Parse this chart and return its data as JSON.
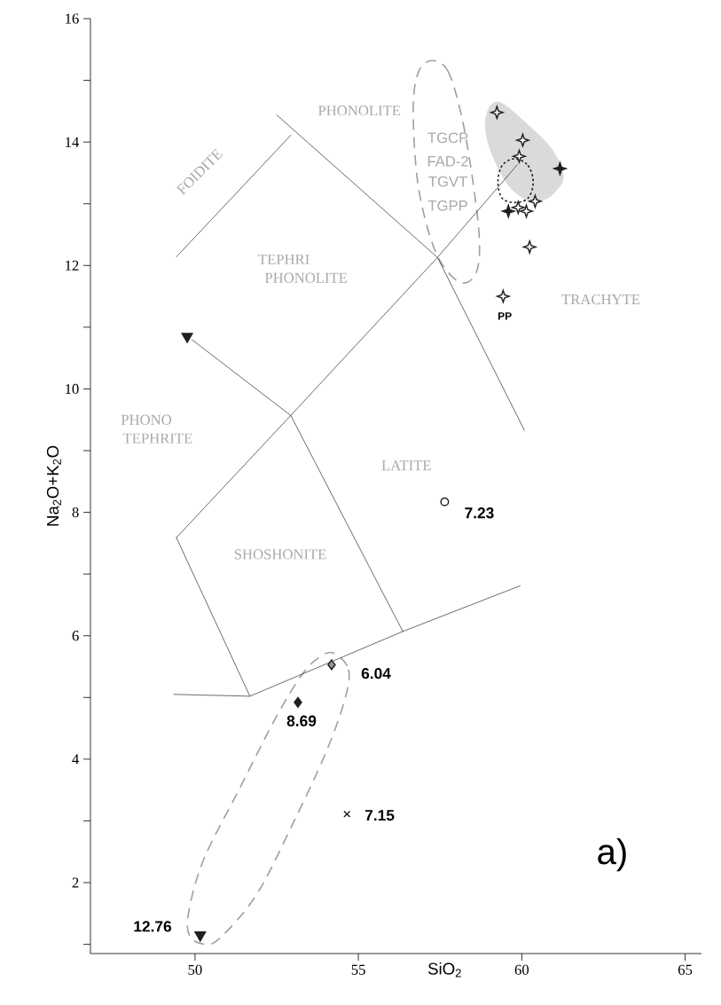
{
  "chart_data": {
    "type": "scatter",
    "xlabel": "SiO$_{2}$",
    "ylabel": "Na$_{2}$O+K$_{2}$O",
    "xlim": [
      46.8,
      65.5
    ],
    "ylim": [
      0.85,
      16
    ],
    "xticks": [
      50,
      55,
      60,
      65
    ],
    "yticks": [
      {
        "value": 1,
        "label": null
      },
      2,
      {
        "value": 3,
        "label": null
      },
      4,
      {
        "value": 5,
        "label": null
      },
      6,
      {
        "value": 7,
        "label": null
      },
      8,
      {
        "value": 9,
        "label": null
      },
      10,
      {
        "value": 11,
        "label": null
      },
      12,
      {
        "value": 13,
        "label": null
      },
      14,
      {
        "value": 15,
        "label": null
      },
      16
    ],
    "series": [
      {
        "type": "line",
        "color": "#231f20",
        "line_style": "solid",
        "x": [
          49.43,
          52.93
        ],
        "values": [
          12.14,
          14.11
        ]
      },
      {
        "type": "line",
        "color": "#231f20",
        "line_style": "solid",
        "x": [
          52.5,
          57.42,
          60.08
        ],
        "values": [
          14.44,
          12.13,
          9.33
        ]
      },
      {
        "type": "line",
        "color": "#231f20",
        "line_style": "solid",
        "x": [
          49.43,
          52.93,
          57.42,
          59.86
        ],
        "values": [
          7.59,
          9.57,
          12.13,
          13.63
        ]
      },
      {
        "type": "line",
        "color": "#231f20",
        "line_style": "solid",
        "x": [
          52.93,
          56.36
        ],
        "values": [
          9.57,
          6.07
        ]
      },
      {
        "type": "line",
        "color": "#231f20",
        "line_style": "solid",
        "x": [
          49.43,
          51.68,
          49.35
        ],
        "values": [
          7.59,
          5.02,
          5.05
        ]
      },
      {
        "type": "line",
        "color": "#231f20",
        "line_style": "solid",
        "x": [
          51.68,
          56.36,
          59.95
        ],
        "values": [
          5.02,
          6.07,
          6.81
        ]
      },
      {
        "marker": "star",
        "color": "#ffffff",
        "x": [
          59.24,
          60.03,
          59.92
        ],
        "values": [
          14.48,
          14.03,
          13.77
        ]
      },
      {
        "marker": "star",
        "color": "#231f20",
        "x": [
          61.17,
          59.59
        ],
        "values": [
          13.57,
          12.88
        ]
      },
      {
        "marker": "star",
        "color": "#ffffff",
        "x": [
          59.89,
          60.14,
          60.41,
          60.24,
          59.43
        ],
        "values": [
          12.94,
          12.88,
          13.04,
          12.3,
          11.5
        ]
      },
      {
        "marker": "triangle",
        "color": "#231f20",
        "x": [
          49.76,
          50.16
        ],
        "values": [
          10.85,
          1.15
        ]
      },
      {
        "marker": "diamond",
        "color": "#939598",
        "x": [
          54.18
        ],
        "values": [
          5.53
        ]
      },
      {
        "marker": "diamond",
        "color": "#231f20",
        "x": [
          53.15
        ],
        "values": [
          4.92
        ]
      },
      {
        "marker": "circle",
        "color": "#ffffff",
        "x": [
          57.64
        ],
        "values": [
          8.17
        ]
      },
      {
        "marker": "cross",
        "color": "#231f20",
        "x": [
          54.65
        ],
        "values": [
          3.11
        ]
      }
    ],
    "annotations": [
      "PHONOLITE",
      "FOIDITE",
      "TEPHRI",
      "PHONOLITE",
      "PHONO",
      "TEPHRITE",
      "LATITE",
      "SHOSHONITE",
      "TRACHYTE",
      "TGCP",
      "FAD-2",
      "TGVT",
      "TGPP",
      "PP",
      "7.23",
      "6.04",
      "8.69",
      "7.15",
      "12.76",
      "a)"
    ]
  }
}
